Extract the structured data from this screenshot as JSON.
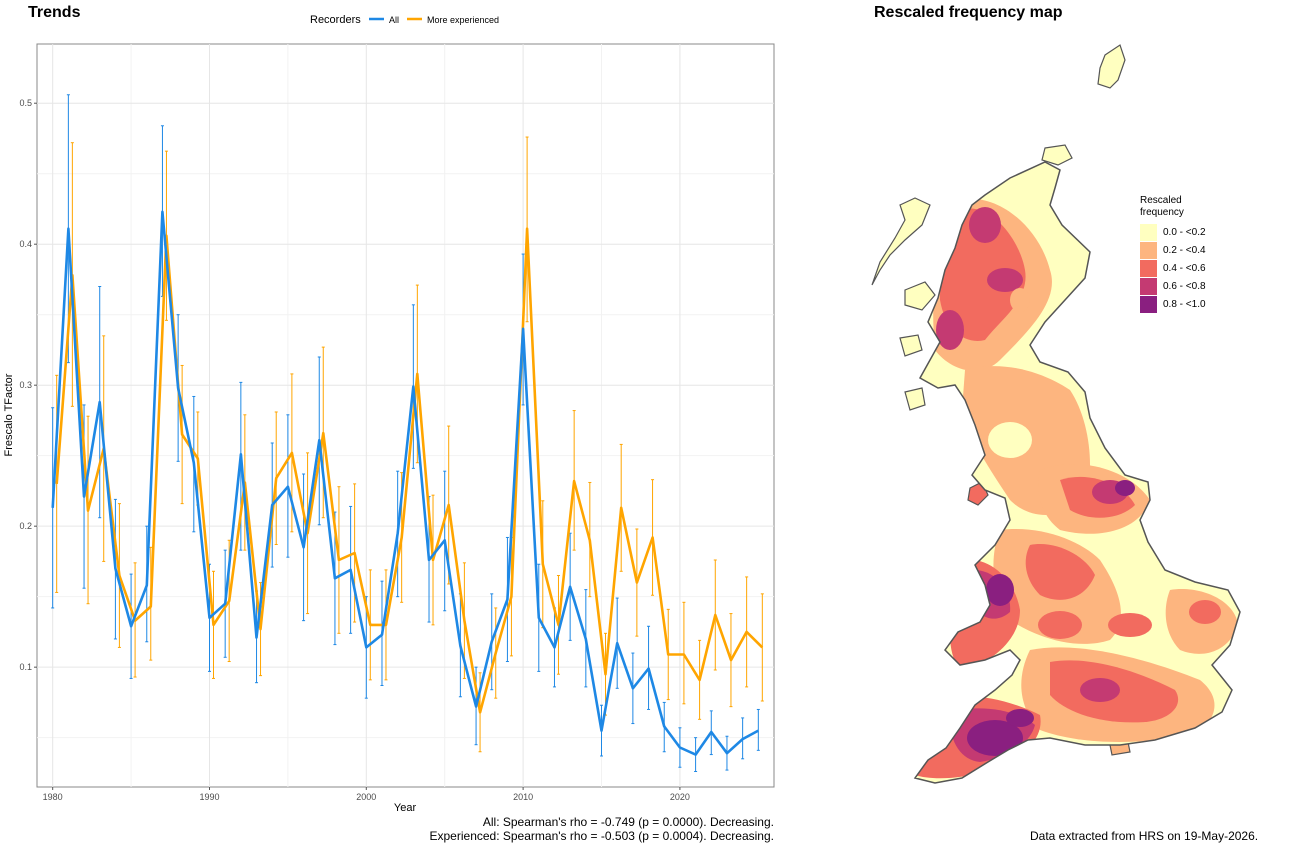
{
  "trends": {
    "title": "Trends",
    "legend_title": "Recorders",
    "stats_all": "All: Spearman's rho = -0.749 (p = 0.0000). Decreasing.",
    "stats_experienced": "Experienced: Spearman's rho = -0.503 (p = 0.0004). Decreasing."
  },
  "map": {
    "title": "Rescaled frequency map",
    "legend_title_line1": "Rescaled",
    "legend_title_line2": "frequency",
    "legend": [
      {
        "label": "0.0 - <0.2",
        "color": "#ffffc0"
      },
      {
        "label": "0.2 - <0.4",
        "color": "#fdb57f"
      },
      {
        "label": "0.4 - <0.6",
        "color": "#f26b5f"
      },
      {
        "label": "0.6 - <0.8",
        "color": "#c43a72"
      },
      {
        "label": "0.8 - <1.0",
        "color": "#8a1f80"
      }
    ],
    "data_note": "Data extracted from HRS on 19-May-2026."
  },
  "chart_data": {
    "type": "line",
    "xlabel": "Year",
    "ylabel": "Frescalo TFactor",
    "xlim": [
      1979,
      2026
    ],
    "ylim": [
      0.015,
      0.542
    ],
    "xticks": [
      1980,
      1990,
      2000,
      2010,
      2020
    ],
    "yticks": [
      0.1,
      0.2,
      0.3,
      0.4,
      0.5
    ],
    "grid": true,
    "legend_position": "top",
    "x": [
      1980,
      1981,
      1982,
      1983,
      1984,
      1985,
      1986,
      1987,
      1988,
      1989,
      1990,
      1991,
      1992,
      1993,
      1994,
      1995,
      1996,
      1997,
      1998,
      1999,
      2000,
      2001,
      2002,
      2003,
      2004,
      2005,
      2006,
      2007,
      2008,
      2009,
      2010,
      2011,
      2012,
      2013,
      2014,
      2015,
      2016,
      2017,
      2018,
      2019,
      2020,
      2021,
      2022,
      2023,
      2024,
      2025
    ],
    "series": [
      {
        "name": "All",
        "color": "#1e88e5",
        "values": [
          0.213,
          0.411,
          0.221,
          0.288,
          0.17,
          0.129,
          0.158,
          0.423,
          0.298,
          0.245,
          0.135,
          0.145,
          0.251,
          0.121,
          0.215,
          0.228,
          0.185,
          0.261,
          0.163,
          0.169,
          0.114,
          0.123,
          0.195,
          0.299,
          0.176,
          0.19,
          0.115,
          0.072,
          0.118,
          0.148,
          0.34,
          0.135,
          0.114,
          0.157,
          0.12,
          0.055,
          0.117,
          0.085,
          0.099,
          0.058,
          0.043,
          0.038,
          0.054,
          0.039,
          0.049,
          0.055
        ],
        "lower": [
          0.142,
          0.316,
          0.156,
          0.206,
          0.12,
          0.092,
          0.118,
          0.363,
          0.246,
          0.196,
          0.097,
          0.107,
          0.183,
          0.089,
          0.171,
          0.178,
          0.133,
          0.201,
          0.116,
          0.124,
          0.078,
          0.087,
          0.15,
          0.241,
          0.132,
          0.14,
          0.079,
          0.045,
          0.084,
          0.104,
          0.286,
          0.097,
          0.086,
          0.119,
          0.086,
          0.037,
          0.085,
          0.06,
          0.07,
          0.04,
          0.029,
          0.026,
          0.038,
          0.027,
          0.035,
          0.041
        ],
        "upper": [
          0.284,
          0.506,
          0.286,
          0.37,
          0.219,
          0.166,
          0.2,
          0.484,
          0.35,
          0.292,
          0.173,
          0.183,
          0.302,
          0.154,
          0.259,
          0.279,
          0.237,
          0.32,
          0.21,
          0.214,
          0.15,
          0.161,
          0.239,
          0.357,
          0.221,
          0.239,
          0.152,
          0.1,
          0.152,
          0.192,
          0.393,
          0.173,
          0.142,
          0.195,
          0.155,
          0.073,
          0.149,
          0.11,
          0.129,
          0.075,
          0.057,
          0.05,
          0.069,
          0.051,
          0.064,
          0.07
        ]
      },
      {
        "name": "More experienced",
        "color": "#ffa500",
        "values": [
          0.23,
          0.378,
          0.211,
          0.255,
          0.165,
          0.133,
          0.143,
          0.406,
          0.265,
          0.248,
          0.13,
          0.147,
          0.231,
          0.127,
          0.234,
          0.252,
          0.195,
          0.266,
          0.176,
          0.181,
          0.13,
          0.13,
          0.192,
          0.308,
          0.176,
          0.215,
          0.133,
          0.068,
          0.11,
          0.15,
          0.411,
          0.173,
          0.13,
          0.232,
          0.19,
          0.095,
          0.213,
          0.16,
          0.192,
          0.109,
          0.109,
          0.091,
          0.137,
          0.105,
          0.125,
          0.114
        ],
        "lower": [
          0.153,
          0.285,
          0.145,
          0.175,
          0.114,
          0.093,
          0.105,
          0.346,
          0.216,
          0.215,
          0.092,
          0.104,
          0.183,
          0.094,
          0.187,
          0.196,
          0.138,
          0.206,
          0.124,
          0.132,
          0.091,
          0.091,
          0.146,
          0.245,
          0.13,
          0.159,
          0.092,
          0.04,
          0.078,
          0.108,
          0.345,
          0.128,
          0.095,
          0.183,
          0.15,
          0.066,
          0.168,
          0.122,
          0.151,
          0.077,
          0.074,
          0.063,
          0.098,
          0.072,
          0.086,
          0.076
        ],
        "upper": [
          0.307,
          0.472,
          0.278,
          0.335,
          0.216,
          0.174,
          0.185,
          0.466,
          0.314,
          0.281,
          0.168,
          0.19,
          0.279,
          0.16,
          0.281,
          0.308,
          0.252,
          0.327,
          0.228,
          0.23,
          0.169,
          0.169,
          0.238,
          0.371,
          0.222,
          0.271,
          0.174,
          0.096,
          0.142,
          0.192,
          0.476,
          0.218,
          0.165,
          0.282,
          0.231,
          0.124,
          0.258,
          0.198,
          0.233,
          0.141,
          0.146,
          0.119,
          0.176,
          0.138,
          0.164,
          0.152
        ]
      }
    ]
  }
}
